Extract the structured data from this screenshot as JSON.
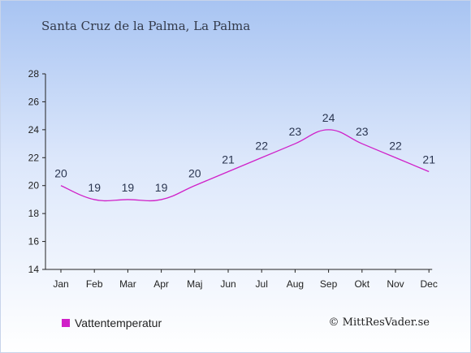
{
  "title": "Santa Cruz de la Palma, La Palma",
  "credit": "© MittResVader.se",
  "colors": {
    "series": "#d020c8",
    "axis": "#222222"
  },
  "chart_data": {
    "type": "line",
    "categories": [
      "Jan",
      "Feb",
      "Mar",
      "Apr",
      "Maj",
      "Jun",
      "Jul",
      "Aug",
      "Sep",
      "Okt",
      "Nov",
      "Dec"
    ],
    "series": [
      {
        "name": "Vattentemperatur",
        "values": [
          20,
          19,
          19,
          19,
          20,
          21,
          22,
          23,
          24,
          23,
          22,
          21
        ]
      }
    ],
    "ylim": [
      14,
      28
    ],
    "yticks": [
      14,
      16,
      18,
      20,
      22,
      24,
      26,
      28
    ],
    "xlabel": "",
    "ylabel": "",
    "grid": false,
    "legend_position": "bottom-left"
  }
}
